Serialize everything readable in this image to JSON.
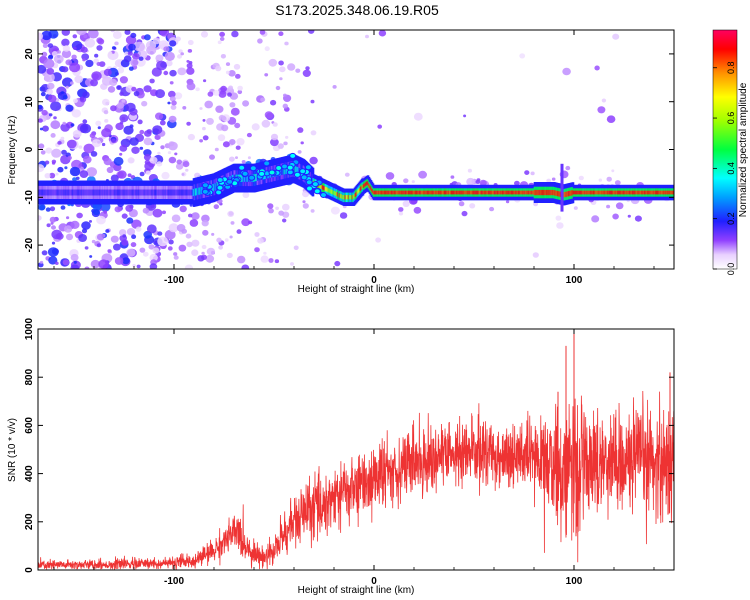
{
  "title": "S173.2025.348.06.19.R05",
  "chart_data": [
    {
      "type": "heatmap",
      "name": "spectrogram",
      "xlabel": "Height of straight line (km)",
      "ylabel": "Frequency (Hz)",
      "xlim": [
        -168,
        150
      ],
      "ylim": [
        -25,
        25
      ],
      "xticks": [
        -100,
        0,
        100
      ],
      "yticks": [
        -20,
        -10,
        0,
        10,
        20
      ],
      "colorbar": {
        "label": "Normalized spectral amplitude",
        "range": [
          0,
          0.95
        ],
        "ticks": [
          "0.0",
          "0.2",
          "0.4",
          "0.6",
          "0.8"
        ],
        "colormap": "rainbow: white-violet-blue-cyan-green-yellow-orange-red-magenta"
      },
      "signal_track": {
        "description": "carrier frequency vs height",
        "x": [
          -120,
          -90,
          -80,
          -70,
          -60,
          -50,
          -40,
          -35,
          -30,
          -25,
          -20,
          -15,
          -12,
          -10,
          -6,
          -3,
          0,
          20,
          50,
          80,
          90,
          95,
          100,
          120,
          150
        ],
        "y": [
          -9,
          -9,
          -8,
          -6,
          -6,
          -5,
          -4,
          -5,
          -7,
          -8,
          -9,
          -10,
          -10,
          -10,
          -8,
          -7,
          -9,
          -9,
          -9,
          -9,
          -9,
          -9.5,
          -9,
          -9,
          -9
        ],
        "peak_amplitude": 0.95
      }
    },
    {
      "type": "line",
      "name": "snr",
      "xlabel": "Height of straight line (km)",
      "ylabel": "SNR (10 * v/v)",
      "xlim": [
        -168,
        150
      ],
      "ylim": [
        0,
        1000
      ],
      "xticks": [
        -100,
        0,
        100
      ],
      "yticks": [
        0,
        200,
        400,
        600,
        800,
        1000
      ],
      "color": "#ee3333",
      "envelope": {
        "x": [
          -168,
          -140,
          -120,
          -100,
          -90,
          -80,
          -75,
          -70,
          -68,
          -65,
          -60,
          -55,
          -50,
          -45,
          -40,
          -35,
          -30,
          -20,
          -10,
          0,
          10,
          20,
          30,
          40,
          50,
          60,
          70,
          80,
          85,
          90,
          93,
          95,
          97,
          99,
          100,
          102,
          105,
          110,
          120,
          130,
          140,
          150
        ],
        "mean": [
          20,
          22,
          25,
          28,
          40,
          80,
          120,
          150,
          160,
          110,
          70,
          50,
          80,
          150,
          200,
          230,
          260,
          300,
          340,
          380,
          420,
          450,
          470,
          480,
          490,
          480,
          470,
          460,
          460,
          430,
          400,
          440,
          420,
          380,
          470,
          420,
          440,
          450,
          460,
          450,
          460,
          450
        ],
        "noise": [
          10,
          10,
          12,
          12,
          15,
          25,
          30,
          40,
          45,
          35,
          25,
          20,
          30,
          45,
          55,
          60,
          65,
          70,
          70,
          70,
          70,
          70,
          70,
          70,
          70,
          70,
          70,
          75,
          80,
          100,
          120,
          150,
          140,
          130,
          200,
          130,
          110,
          100,
          100,
          110,
          120,
          130
        ]
      },
      "spikes": [
        {
          "x": 100,
          "y": 1000
        },
        {
          "x": 96,
          "y": 930
        },
        {
          "x": 101,
          "y": 140
        },
        {
          "x": 148,
          "y": 820
        },
        {
          "x": 92,
          "y": 740
        },
        {
          "x": 147,
          "y": 230
        }
      ]
    }
  ]
}
